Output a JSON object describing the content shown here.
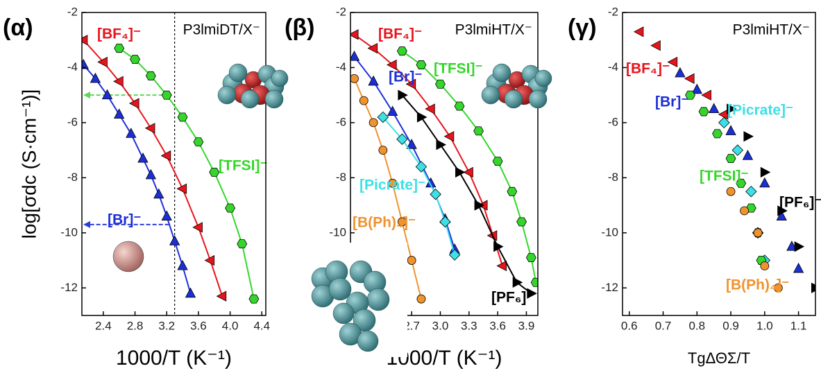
{
  "chart_data": [
    {
      "type": "scatter",
      "tag": "(α)",
      "title": "P3lmiDT/X⁻",
      "xlabel": "1000/T (K⁻¹)",
      "ylabel": "log[σdc (S·cm⁻¹)]",
      "xlim": [
        2.13,
        4.45
      ],
      "ylim": [
        -13,
        -2
      ],
      "xticks": [
        2.4,
        2.8,
        3.2,
        3.6,
        {
          "value": 4,
          "label": "4.0"
        },
        4.4
      ],
      "yticks": [
        -2,
        -4,
        -6,
        -8,
        -10,
        -12
      ],
      "lines": true,
      "vline": 3.3,
      "arrows": [
        {
          "value": -5,
          "color": "#5fd65a"
        },
        {
          "value": -9.7,
          "color": "#2a3bd8"
        }
      ],
      "series": [
        {
          "name": "[Br]⁻",
          "color": "#1c2fd6",
          "marker": "triangle-up",
          "x": [
            2.15,
            2.3,
            2.45,
            2.6,
            2.75,
            2.9,
            3.0,
            3.1,
            3.2,
            3.3,
            3.4,
            3.5
          ],
          "values": [
            -3.9,
            -4.4,
            -5.0,
            -5.7,
            -6.4,
            -7.3,
            -7.9,
            -8.6,
            -9.4,
            -10.3,
            -11.2,
            -12.2
          ]
        },
        {
          "name": "[BF₄]⁻",
          "color": "#e8141b",
          "marker": "triangle-left",
          "x": [
            2.15,
            2.4,
            2.6,
            2.8,
            3.0,
            3.2,
            3.4,
            3.6,
            3.75,
            3.9
          ],
          "values": [
            -3.0,
            -3.8,
            -4.5,
            -5.3,
            -6.2,
            -7.2,
            -8.4,
            -9.8,
            -11.0,
            -12.3
          ]
        },
        {
          "name": "[TFSI]⁻",
          "color": "#35d62b",
          "marker": "hexagon",
          "x": [
            2.6,
            2.8,
            3.0,
            3.2,
            3.4,
            3.6,
            3.8,
            4.0,
            4.15,
            4.3
          ],
          "values": [
            -3.3,
            -3.7,
            -4.3,
            -5.0,
            -5.8,
            -6.7,
            -7.8,
            -9.1,
            -10.4,
            -12.4
          ]
        }
      ]
    },
    {
      "type": "scatter",
      "tag": "(β)",
      "title": "P3lmiHT/X⁻",
      "xlabel": "1000/T (K⁻¹)",
      "xlim": [
        2.06,
        4.02
      ],
      "ylim": [
        -13,
        -2
      ],
      "xticks": [
        2.7,
        {
          "value": 3,
          "label": "3.0"
        },
        3.3,
        3.6,
        3.9
      ],
      "yticks": [
        -2,
        -4,
        -6,
        -8,
        -10,
        -12
      ],
      "lines": true,
      "series": [
        {
          "name": "[BF₄]⁻",
          "color": "#e8141b",
          "marker": "triangle-left",
          "x": [
            2.1,
            2.3,
            2.5,
            2.7,
            2.9,
            3.1,
            3.3,
            3.45,
            3.55,
            3.65
          ],
          "values": [
            -2.8,
            -3.3,
            -3.9,
            -4.6,
            -5.5,
            -6.5,
            -7.8,
            -9.0,
            -10.1,
            -11.2
          ]
        },
        {
          "name": "[TFSI]⁻",
          "color": "#35d62b",
          "marker": "hexagon",
          "x": [
            2.6,
            2.8,
            3.0,
            3.2,
            3.4,
            3.6,
            3.75,
            3.85,
            3.95,
            4.0
          ],
          "values": [
            -3.4,
            -3.9,
            -4.6,
            -5.4,
            -6.3,
            -7.4,
            -8.5,
            -9.6,
            -10.9,
            -11.8
          ]
        },
        {
          "name": "[Br]⁻",
          "color": "#1c2fd6",
          "marker": "triangle-up",
          "x": [
            2.1,
            2.3,
            2.5,
            2.7,
            2.9,
            3.05,
            3.15
          ],
          "values": [
            -3.6,
            -4.5,
            -5.6,
            -6.8,
            -8.2,
            -9.5,
            -10.6
          ]
        },
        {
          "name": "[PF₆]⁻",
          "color": "#000000",
          "marker": "triangle-right",
          "x": [
            2.6,
            2.8,
            3.0,
            3.2,
            3.4,
            3.6,
            3.8,
            3.95
          ],
          "values": [
            -5.0,
            -5.8,
            -6.8,
            -7.8,
            -9.0,
            -10.5,
            -11.8,
            -12.2
          ]
        },
        {
          "name": "[Picrate]⁻",
          "color": "#3de0e6",
          "marker": "diamond",
          "x": [
            2.4,
            2.6,
            2.8,
            2.95,
            3.05,
            3.15
          ],
          "values": [
            -5.8,
            -6.6,
            -7.6,
            -8.6,
            -9.6,
            -10.8
          ]
        },
        {
          "name": "[B(Ph)₄]⁻",
          "color": "#f0922e",
          "marker": "circle",
          "x": [
            2.1,
            2.2,
            2.3,
            2.4,
            2.5,
            2.6,
            2.7,
            2.8
          ],
          "values": [
            -4.4,
            -5.2,
            -6.0,
            -7.0,
            -8.2,
            -9.6,
            -11.0,
            -12.4
          ]
        }
      ]
    },
    {
      "type": "scatter",
      "tag": "(γ)",
      "title": "P3lmiHT/X⁻",
      "xlabel": "TgΔΘΣ/T",
      "xlim": [
        0.58,
        1.15
      ],
      "ylim": [
        -13,
        -2
      ],
      "xticks": [
        0.6,
        0.7,
        0.8,
        0.9,
        {
          "value": 1,
          "label": "1.0"
        },
        1.1
      ],
      "yticks": [
        -2,
        -4,
        -6,
        -8,
        -10,
        -12
      ],
      "lines": false,
      "series": [
        {
          "name": "[BF₄]⁻",
          "color": "#e8141b",
          "marker": "triangle-left",
          "x": [
            0.63,
            0.68,
            0.73,
            0.78,
            0.83,
            0.88
          ],
          "values": [
            -2.7,
            -3.2,
            -3.8,
            -4.4,
            -5.0,
            -5.7
          ]
        },
        {
          "name": "[Br]⁻",
          "color": "#1c2fd6",
          "marker": "triangle-up",
          "x": [
            0.75,
            0.8,
            0.85,
            0.9,
            0.95,
            1.0,
            1.05,
            1.08,
            1.1
          ],
          "values": [
            -4.2,
            -4.8,
            -5.5,
            -6.3,
            -7.2,
            -8.2,
            -9.4,
            -10.5,
            -11.3
          ]
        },
        {
          "name": "[Picrate]⁻",
          "color": "#3de0e6",
          "marker": "diamond",
          "x": [
            0.88,
            0.92,
            0.96,
            0.98,
            1.0
          ],
          "values": [
            -6.0,
            -7.0,
            -8.5,
            -10.0,
            -11.0
          ]
        },
        {
          "name": "[TFSI]⁻",
          "color": "#35d62b",
          "marker": "hexagon",
          "x": [
            0.78,
            0.82,
            0.86,
            0.9,
            0.93,
            0.96,
            0.98,
            0.99
          ],
          "values": [
            -5.0,
            -5.6,
            -6.4,
            -7.3,
            -8.2,
            -9.1,
            -10.0,
            -11.0
          ]
        },
        {
          "name": "[PF₆]⁻",
          "color": "#000000",
          "marker": "triangle-right",
          "x": [
            0.9,
            0.95,
            1.0,
            1.05,
            1.1,
            1.15
          ],
          "values": [
            -5.5,
            -6.5,
            -7.8,
            -9.2,
            -10.5,
            -12.0
          ]
        },
        {
          "name": "[B(Ph)₄]⁻",
          "color": "#f0922e",
          "marker": "circle",
          "x": [
            0.9,
            0.94,
            0.98,
            1.0,
            1.04
          ],
          "values": [
            -8.5,
            -9.2,
            -10.0,
            -11.2,
            -12.0
          ]
        }
      ]
    }
  ]
}
